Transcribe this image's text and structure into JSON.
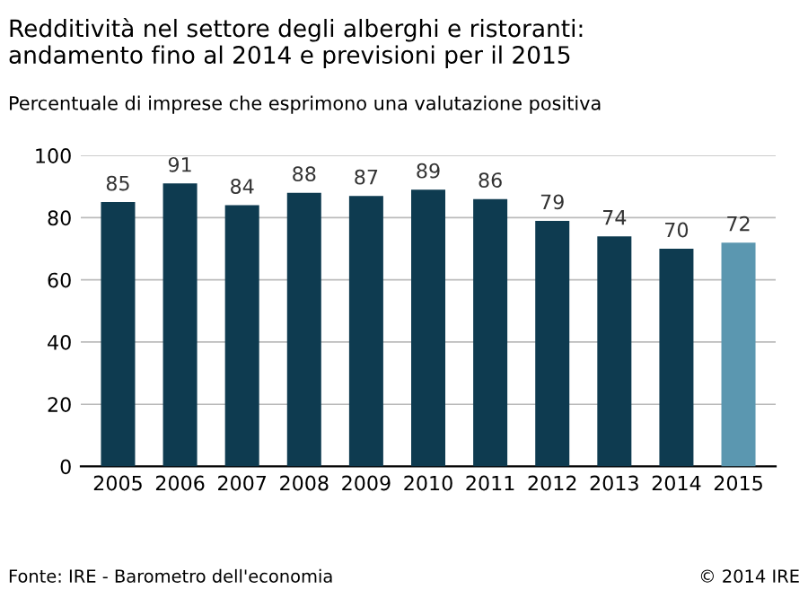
{
  "chart_data": {
    "type": "bar",
    "title": "Redditività nel settore degli alberghi e ristoranti:\nandamento fino al 2014 e previsioni per il 2015",
    "subtitle": "Percentuale di imprese che esprimono una valutazione positiva",
    "categories": [
      "2005",
      "2006",
      "2007",
      "2008",
      "2009",
      "2010",
      "2011",
      "2012",
      "2013",
      "2014",
      "2015"
    ],
    "values": [
      85,
      91,
      84,
      88,
      87,
      89,
      86,
      79,
      74,
      70,
      72
    ],
    "colors": [
      "#0e3b50",
      "#0e3b50",
      "#0e3b50",
      "#0e3b50",
      "#0e3b50",
      "#0e3b50",
      "#0e3b50",
      "#0e3b50",
      "#0e3b50",
      "#0e3b50",
      "#5b97b0"
    ],
    "ylim": [
      0,
      100
    ],
    "yticks": [
      0,
      20,
      40,
      60,
      80,
      100
    ],
    "grid": "y",
    "data_labels": true,
    "annotations": [
      "Fonte: IRE - Barometro dell'economia",
      "© 2014 IRE"
    ]
  }
}
